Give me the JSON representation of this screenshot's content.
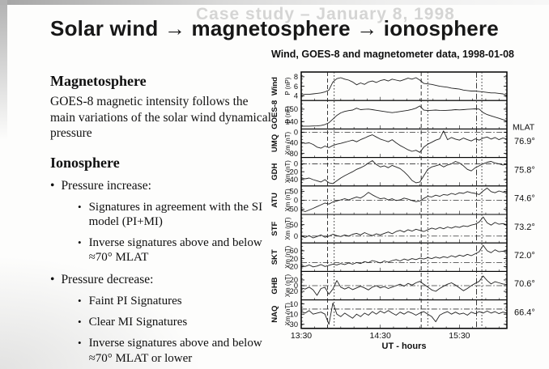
{
  "ghost_title": "Case study – January 8, 1998",
  "title": "Solar wind → magnetosphere → ionosphere",
  "left_panel": {
    "magnetosphere_heading": "Magnetosphere",
    "magnetosphere_body": "GOES-8 magnetic intensity follows the main variations of the solar wind dynamical pressure",
    "ionosphere_heading": "Ionosphere",
    "bullets": [
      {
        "label": "Pressure increase:",
        "sub": [
          "Signatures in agreement with the SI model (PI+MI)",
          "Inverse signatures above and below ≈70° MLAT"
        ]
      },
      {
        "label": "Pressure decrease:",
        "sub": [
          "Faint PI Signatures",
          "Clear MI Signatures",
          "Inverse signatures above and below ≈70° MLAT or lower"
        ]
      }
    ]
  },
  "chart_data": {
    "type": "line",
    "title": "Wind, GOES-8 and magnetometer data, 1998-01-08",
    "xlabel": "UT - hours",
    "mlat_header": "MLAT",
    "x_start_min": 0,
    "x_end_min": 156,
    "sample_step_min": 3,
    "x_ticks": [
      {
        "t": 0,
        "label": "13:30"
      },
      {
        "t": 60,
        "label": "14:30"
      },
      {
        "t": 120,
        "label": "15:30"
      }
    ],
    "event_lines": [
      {
        "t": 20,
        "style": "dashed",
        "time": "13:50"
      },
      {
        "t": 25,
        "style": "dotted",
        "time": "13:55"
      },
      {
        "t": 91,
        "style": "dashed",
        "time": "15:01"
      },
      {
        "t": 96,
        "style": "dotted",
        "time": "15:06"
      },
      {
        "t": 133,
        "style": "dashdot",
        "time": "15:43"
      },
      {
        "t": 137,
        "style": "dotted",
        "time": "15:47"
      }
    ],
    "panels": [
      {
        "station": "Wind",
        "unit": "P (nP)",
        "mlat": null,
        "ymin": 3,
        "ymax": 9,
        "yticks": [
          4,
          6,
          8
        ],
        "zero_line": false,
        "values": [
          4.2,
          4.3,
          4.3,
          4.4,
          4.5,
          4.6,
          4.8,
          5.2,
          6.9,
          7.6,
          7.8,
          7.5,
          7.3,
          6.9,
          6.3,
          6.7,
          6.4,
          6.9,
          7.1,
          6.8,
          7.2,
          7.4,
          7.1,
          7.5,
          7.3,
          7.1,
          7.4,
          7.7,
          7.5,
          7.8,
          7.3,
          6.6,
          6.5,
          6.4,
          6.2,
          6.0,
          5.9,
          5.8,
          5.6,
          5.5,
          5.4,
          5.2,
          5.1,
          5.0,
          5.0,
          4.9,
          4.8,
          4.7,
          4.6,
          4.6,
          4.5,
          4.4,
          4.1
        ]
      },
      {
        "station": "GOES-8",
        "unit": "B (nT)",
        "mlat": null,
        "ymin": 134,
        "ymax": 157,
        "yticks": [
          140,
          150
        ],
        "zero_line": false,
        "values": [
          136.2,
          136.3,
          136.3,
          136.4,
          136.5,
          136.8,
          137.6,
          139.0,
          142.0,
          145.0,
          147.0,
          148.2,
          148.8,
          149.3,
          150.8,
          149.6,
          149.9,
          150.1,
          149.6,
          149.1,
          148.6,
          148.1,
          147.6,
          147.2,
          147.6,
          148.1,
          148.6,
          149.1,
          149.8,
          150.8,
          152.6,
          149.2,
          148.9,
          149.1,
          149.3,
          149.0,
          148.9,
          149.1,
          149.3,
          149.6,
          149.4,
          149.6,
          149.9,
          150.1,
          150.3,
          150.1,
          147.2,
          145.6,
          144.6,
          143.6,
          142.6,
          141.6,
          140.6
        ]
      },
      {
        "station": "UMQ",
        "unit": "Xm (nT)",
        "mlat": "76.9°",
        "ymin": -95,
        "ymax": 12,
        "yticks": [
          0,
          -40,
          -80
        ],
        "zero_line": true,
        "values": [
          -38,
          -42,
          -40,
          -46,
          -56,
          -60,
          -52,
          -58,
          -50,
          -45,
          -42,
          -38,
          -34,
          -30,
          -36,
          -28,
          -22,
          -15,
          -10,
          -18,
          -26,
          -31,
          -36,
          -28,
          -40,
          -50,
          -58,
          -66,
          -72,
          -68,
          -76,
          -56,
          -45,
          -38,
          -30,
          -25,
          5,
          -28,
          -20,
          -26,
          -30,
          -22,
          -28,
          -33,
          -25,
          -30,
          -22,
          -18,
          -26,
          -20,
          -28,
          -22,
          -26
        ]
      },
      {
        "station": "GDH",
        "unit": "Xm (nT)",
        "mlat": "75.8°",
        "ymin": -56,
        "ymax": 16,
        "yticks": [
          0,
          -20,
          -40
        ],
        "zero_line": true,
        "values": [
          -35,
          -38,
          -36,
          -40,
          -43,
          -46,
          -40,
          -48,
          -50,
          -43,
          -36,
          -30,
          -25,
          -20,
          -14,
          -10,
          -5,
          2,
          8,
          -2,
          -8,
          -5,
          -10,
          -4,
          -8,
          -12,
          -20,
          -30,
          -42,
          -48,
          -46,
          -30,
          -14,
          -8,
          -5,
          -2,
          -8,
          -3,
          0,
          6,
          2,
          -5,
          -14,
          -18,
          -10,
          -5,
          0,
          4,
          6,
          2,
          0,
          -3,
          -1
        ]
      },
      {
        "station": "ATU",
        "unit": "Xm (nT)",
        "mlat": "74.6°",
        "ymin": -80,
        "ymax": 80,
        "yticks": [
          50,
          0,
          -50
        ],
        "zero_line": true,
        "values": [
          -55,
          -64,
          -55,
          -46,
          -36,
          -26,
          -16,
          -22,
          -10,
          -4,
          2,
          8,
          2,
          10,
          18,
          12,
          26,
          44,
          30,
          18,
          8,
          12,
          2,
          8,
          -2,
          2,
          12,
          6,
          -2,
          -8,
          -4,
          10,
          22,
          18,
          28,
          22,
          32,
          28,
          38,
          32,
          42,
          38,
          48,
          42,
          38,
          32,
          52,
          68,
          48,
          42,
          52,
          46,
          40
        ]
      },
      {
        "station": "STF",
        "unit": "Xm (nT)",
        "mlat": "73.2°",
        "ymin": -30,
        "ymax": 95,
        "yticks": [
          50,
          0
        ],
        "zero_line": true,
        "values": [
          0,
          -6,
          2,
          -8,
          -2,
          5,
          -5,
          0,
          8,
          2,
          -2,
          5,
          0,
          8,
          12,
          5,
          15,
          8,
          2,
          10,
          5,
          12,
          18,
          10,
          20,
          25,
          18,
          28,
          22,
          30,
          25,
          20,
          28,
          35,
          30,
          38,
          32,
          40,
          35,
          42,
          38,
          45,
          42,
          48,
          52,
          62,
          84,
          58,
          48,
          60,
          52,
          55,
          50
        ]
      },
      {
        "station": "SKT",
        "unit": "Xm (nT)",
        "mlat": "72.0°",
        "ymin": -45,
        "ymax": 100,
        "yticks": [
          60,
          20,
          -20
        ],
        "zero_line": true,
        "values": [
          -15,
          -20,
          -12,
          -22,
          -18,
          -10,
          -20,
          -14,
          -8,
          -12,
          -5,
          -10,
          -2,
          -8,
          0,
          -5,
          5,
          0,
          10,
          5,
          -2,
          8,
          2,
          10,
          15,
          8,
          18,
          12,
          20,
          15,
          22,
          18,
          25,
          20,
          28,
          22,
          30,
          25,
          35,
          28,
          38,
          32,
          42,
          35,
          45,
          55,
          88,
          60,
          50,
          65,
          55,
          58,
          52
        ]
      },
      {
        "station": "GHB",
        "unit": "Xm (nT)",
        "mlat": "70.6°",
        "ymin": -50,
        "ymax": 50,
        "yticks": [
          20,
          0,
          -20
        ],
        "zero_line": true,
        "values": [
          -8,
          -12,
          -5,
          -15,
          -34,
          -10,
          -6,
          -30,
          -12,
          18,
          -5,
          -12,
          -6,
          -14,
          -8,
          -2,
          -8,
          -15,
          -5,
          0,
          -8,
          -3,
          -10,
          -5,
          0,
          5,
          -2,
          8,
          2,
          10,
          15,
          5,
          -5,
          -15,
          -20,
          -10,
          -2,
          5,
          10,
          2,
          -8,
          -18,
          -10,
          0,
          8,
          15,
          34,
          18,
          6,
          14,
          10,
          6,
          4
        ]
      },
      {
        "station": "NAQ",
        "unit": "Xm (nT)",
        "mlat": "66.4°",
        "ymin": -38,
        "ymax": 18,
        "yticks": [
          10,
          -10,
          -30
        ],
        "zero_line": true,
        "values": [
          -5,
          -8,
          -3,
          -10,
          -8,
          -6,
          -10,
          -30,
          12,
          -10,
          -15,
          -8,
          -13,
          -18,
          -10,
          -15,
          -8,
          -12,
          -5,
          -10,
          -4,
          -8,
          -3,
          -8,
          -12,
          -6,
          -10,
          -5,
          -8,
          -12,
          -8,
          -5,
          -10,
          -15,
          -25,
          -12,
          -8,
          -5,
          -10,
          -6,
          -10,
          -8,
          -12,
          -6,
          -9,
          -5,
          -8,
          -4,
          -8,
          -5,
          -9,
          -6,
          -8
        ]
      }
    ]
  }
}
